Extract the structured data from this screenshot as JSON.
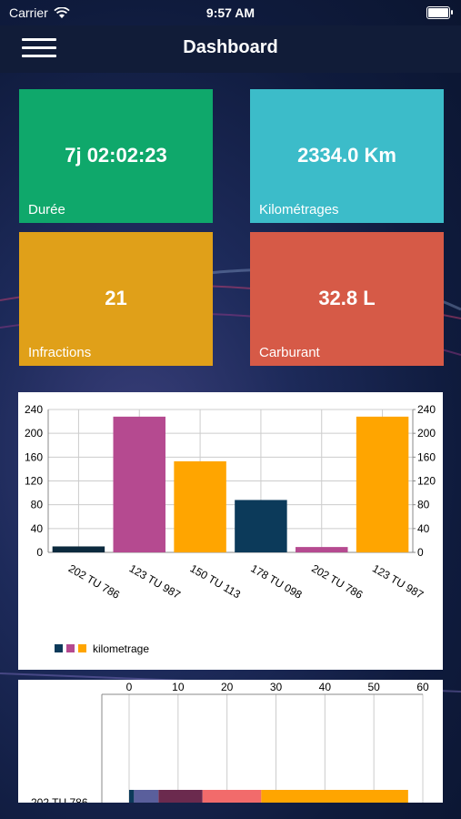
{
  "status_bar": {
    "carrier": "Carrier",
    "time": "9:57 AM"
  },
  "header": {
    "title": "Dashboard"
  },
  "cards": [
    {
      "value": "7j 02:02:23",
      "label": "Durée",
      "color": "#0fa86b"
    },
    {
      "value": "2334.0 Km",
      "label": "Kilométrages",
      "color": "#3cbcc9"
    },
    {
      "value": "21",
      "label": "Infractions",
      "color": "#e0a019"
    },
    {
      "value": "32.8 L",
      "label": "Carburant",
      "color": "#d65a47"
    }
  ],
  "chart_data": [
    {
      "type": "bar",
      "categories": [
        "202 TU 786",
        "123 TU 987",
        "150 TU 113",
        "178 TU 098",
        "202 TU 786",
        "123 TU 987"
      ],
      "values": [
        10,
        228,
        153,
        88,
        9,
        228
      ],
      "bar_colors": [
        "#0c2a3e",
        "#b54a90",
        "#ffa500",
        "#0c3a5a",
        "#b54a90",
        "#ffa500"
      ],
      "ylim": [
        0,
        240
      ],
      "yticks": [
        0,
        40,
        80,
        120,
        160,
        200,
        240
      ],
      "legend": {
        "label": "kilometrage",
        "colors": [
          "#0c3a5a",
          "#b54a90",
          "#ffa500"
        ],
        "position": "bottom-left"
      },
      "grid": true
    },
    {
      "type": "bar",
      "orientation": "horizontal-stacked",
      "xlim": [
        0,
        60
      ],
      "xticks": [
        0,
        10,
        20,
        30,
        40,
        50,
        60
      ],
      "categories": [
        "202 TU 786"
      ],
      "segments": [
        {
          "value": 1,
          "color": "#0c3a5a"
        },
        {
          "value": 5,
          "color": "#5a5f9c"
        },
        {
          "value": 9,
          "color": "#6b2a4e"
        },
        {
          "value": 12,
          "color": "#f26b6b"
        },
        {
          "value": 30,
          "color": "#ffa500"
        }
      ]
    }
  ]
}
